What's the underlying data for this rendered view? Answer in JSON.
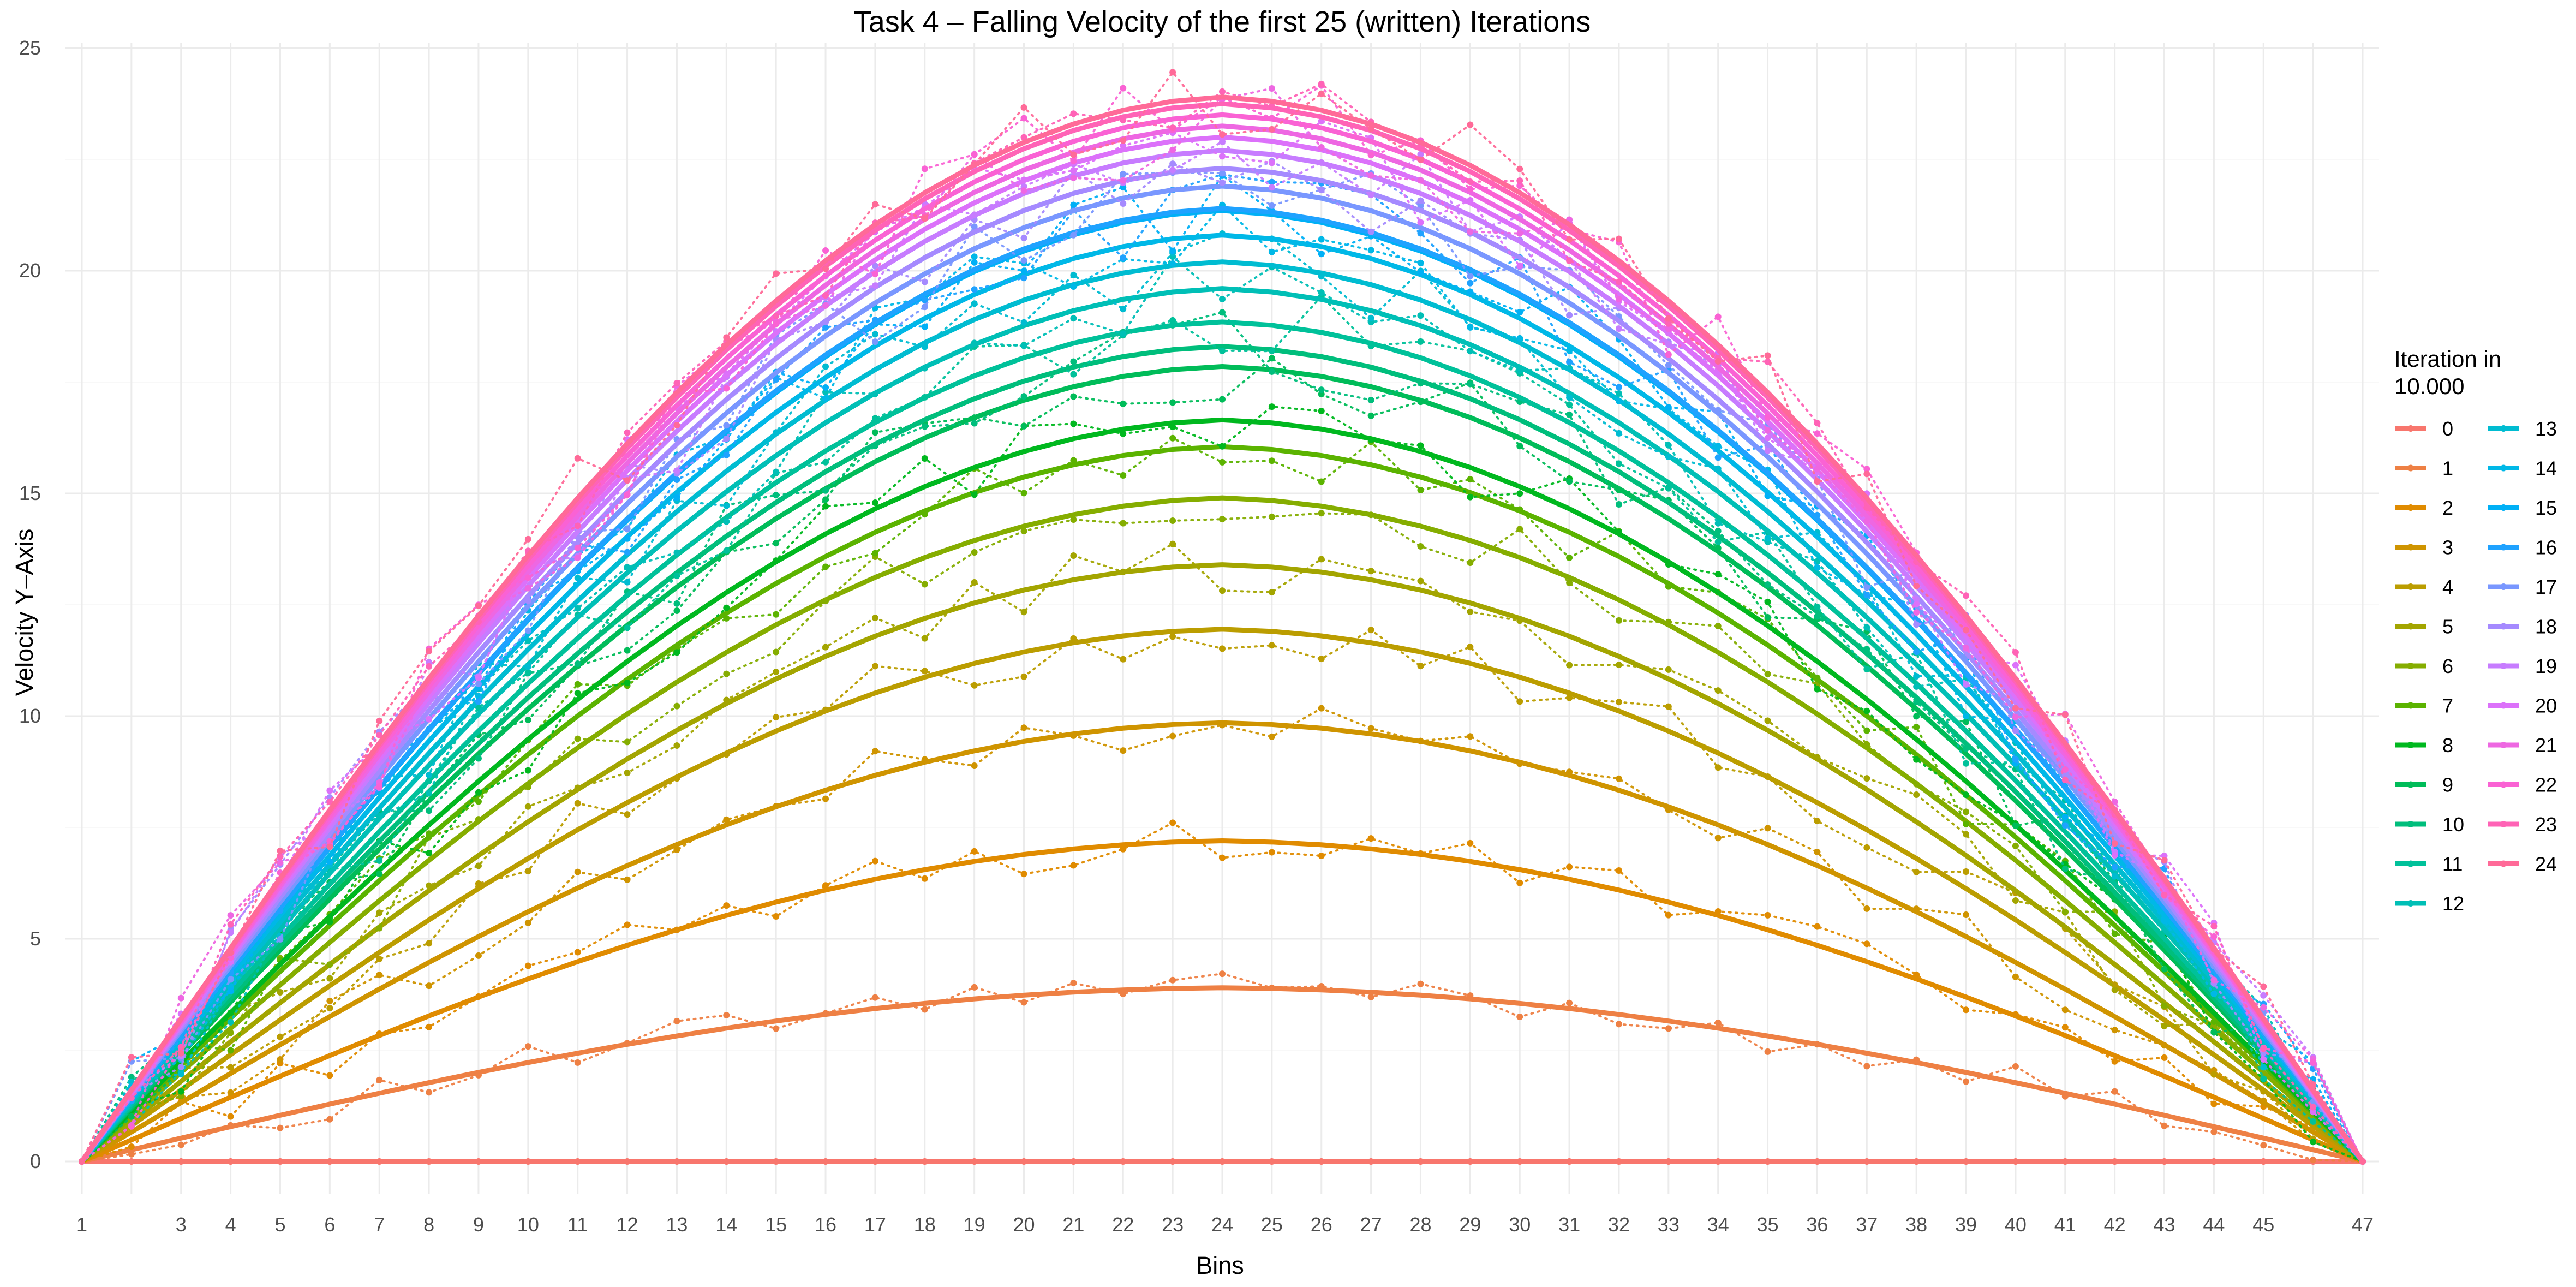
{
  "chart_data": {
    "type": "line",
    "title": "Task 4 – Falling Velocity of the first 25 (written) Iterations",
    "xlabel": "Bins",
    "ylabel": "Velocity Y–Axis",
    "x_ticks": [
      1,
      3,
      4,
      5,
      6,
      7,
      8,
      9,
      10,
      11,
      12,
      13,
      14,
      15,
      16,
      17,
      18,
      19,
      20,
      21,
      22,
      23,
      24,
      25,
      26,
      27,
      28,
      29,
      30,
      31,
      32,
      33,
      34,
      35,
      36,
      37,
      38,
      39,
      40,
      41,
      42,
      43,
      44,
      45,
      47
    ],
    "y_ticks": [
      0,
      5,
      10,
      15,
      20,
      25
    ],
    "xlim": [
      1,
      47
    ],
    "ylim": [
      0,
      25
    ],
    "grid": true,
    "legend": {
      "title": "Iteration in\n10.000",
      "placement": "right",
      "columns": 2
    },
    "series": [
      {
        "name": "0",
        "peak": 0.0,
        "color": "#F8766D"
      },
      {
        "name": "1",
        "peak": 3.9,
        "color": "#EE8044"
      },
      {
        "name": "2",
        "peak": 7.2,
        "color": "#E08B00"
      },
      {
        "name": "3",
        "peak": 9.85,
        "color": "#CF9400"
      },
      {
        "name": "4",
        "peak": 11.95,
        "color": "#BB9D00"
      },
      {
        "name": "5",
        "peak": 13.4,
        "color": "#A3A500"
      },
      {
        "name": "6",
        "peak": 14.9,
        "color": "#85AD00"
      },
      {
        "name": "7",
        "peak": 16.05,
        "color": "#5BB300"
      },
      {
        "name": "8",
        "peak": 16.65,
        "color": "#00B81F"
      },
      {
        "name": "9",
        "peak": 17.85,
        "color": "#00BC59"
      },
      {
        "name": "10",
        "peak": 18.3,
        "color": "#00BE7C"
      },
      {
        "name": "11",
        "peak": 18.85,
        "color": "#00C19A"
      },
      {
        "name": "12",
        "peak": 19.6,
        "color": "#00BFB6"
      },
      {
        "name": "13",
        "peak": 20.2,
        "color": "#00BCD1"
      },
      {
        "name": "14",
        "peak": 20.8,
        "color": "#00B8E7"
      },
      {
        "name": "15",
        "peak": 21.35,
        "color": "#00B0F6"
      },
      {
        "name": "16",
        "peak": 21.4,
        "color": "#1FA2FF"
      },
      {
        "name": "17",
        "peak": 21.9,
        "color": "#7997FF"
      },
      {
        "name": "18",
        "peak": 22.3,
        "color": "#A58AFF"
      },
      {
        "name": "19",
        "peak": 22.7,
        "color": "#C77CFF"
      },
      {
        "name": "20",
        "peak": 23.0,
        "color": "#DC71FA"
      },
      {
        "name": "21",
        "peak": 23.25,
        "color": "#EE67E2"
      },
      {
        "name": "22",
        "peak": 23.5,
        "color": "#FA62D4"
      },
      {
        "name": "23",
        "peak": 23.75,
        "color": "#FF63B6"
      },
      {
        "name": "24",
        "peak": 23.9,
        "color": "#FF6A98"
      }
    ]
  }
}
